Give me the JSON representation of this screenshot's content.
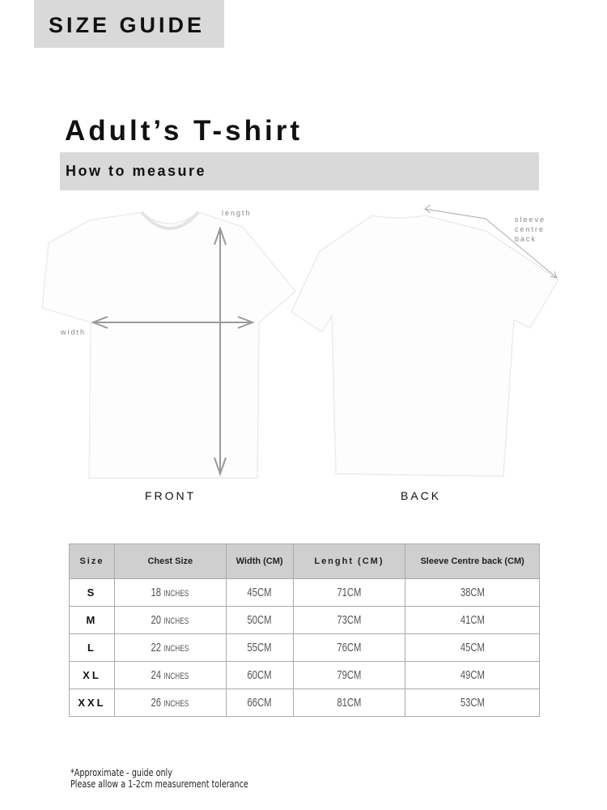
{
  "banner": {
    "label": "SIZE GUIDE"
  },
  "title": "Adult’s T-shirt",
  "subtitle": "How to measure",
  "illustration": {
    "front_label": "FRONT",
    "back_label": "BACK",
    "length_label": "length",
    "width_label": "width",
    "sleeve_label": [
      "sleeve",
      "centre",
      "back"
    ],
    "arrow_color": "#9a9a9a"
  },
  "table": {
    "headers": [
      "Size",
      "Chest Size",
      "Width (CM)",
      "Lenght (CM)",
      "Sleeve Centre back (CM)"
    ],
    "rows": [
      {
        "size": "S",
        "chest": "18",
        "chest_unit": "INCHES",
        "width": "45CM",
        "length": "71CM",
        "sleeve": "38CM"
      },
      {
        "size": "M",
        "chest": "20",
        "chest_unit": "INCHES",
        "width": "50CM",
        "length": "73CM",
        "sleeve": "41CM"
      },
      {
        "size": "L",
        "chest": "22",
        "chest_unit": "INCHES",
        "width": "55CM",
        "length": "76CM",
        "sleeve": "45CM"
      },
      {
        "size": "XL",
        "chest": "24",
        "chest_unit": "INCHES",
        "width": "60CM",
        "length": "79CM",
        "sleeve": "49CM"
      },
      {
        "size": "XXL",
        "chest": "26",
        "chest_unit": "INCHES",
        "width": "66CM",
        "length": "81CM",
        "sleeve": "53CM"
      }
    ]
  },
  "notes": [
    "*Approximate - guide only",
    "Please allow a 1-2cm measurement tolerance"
  ]
}
